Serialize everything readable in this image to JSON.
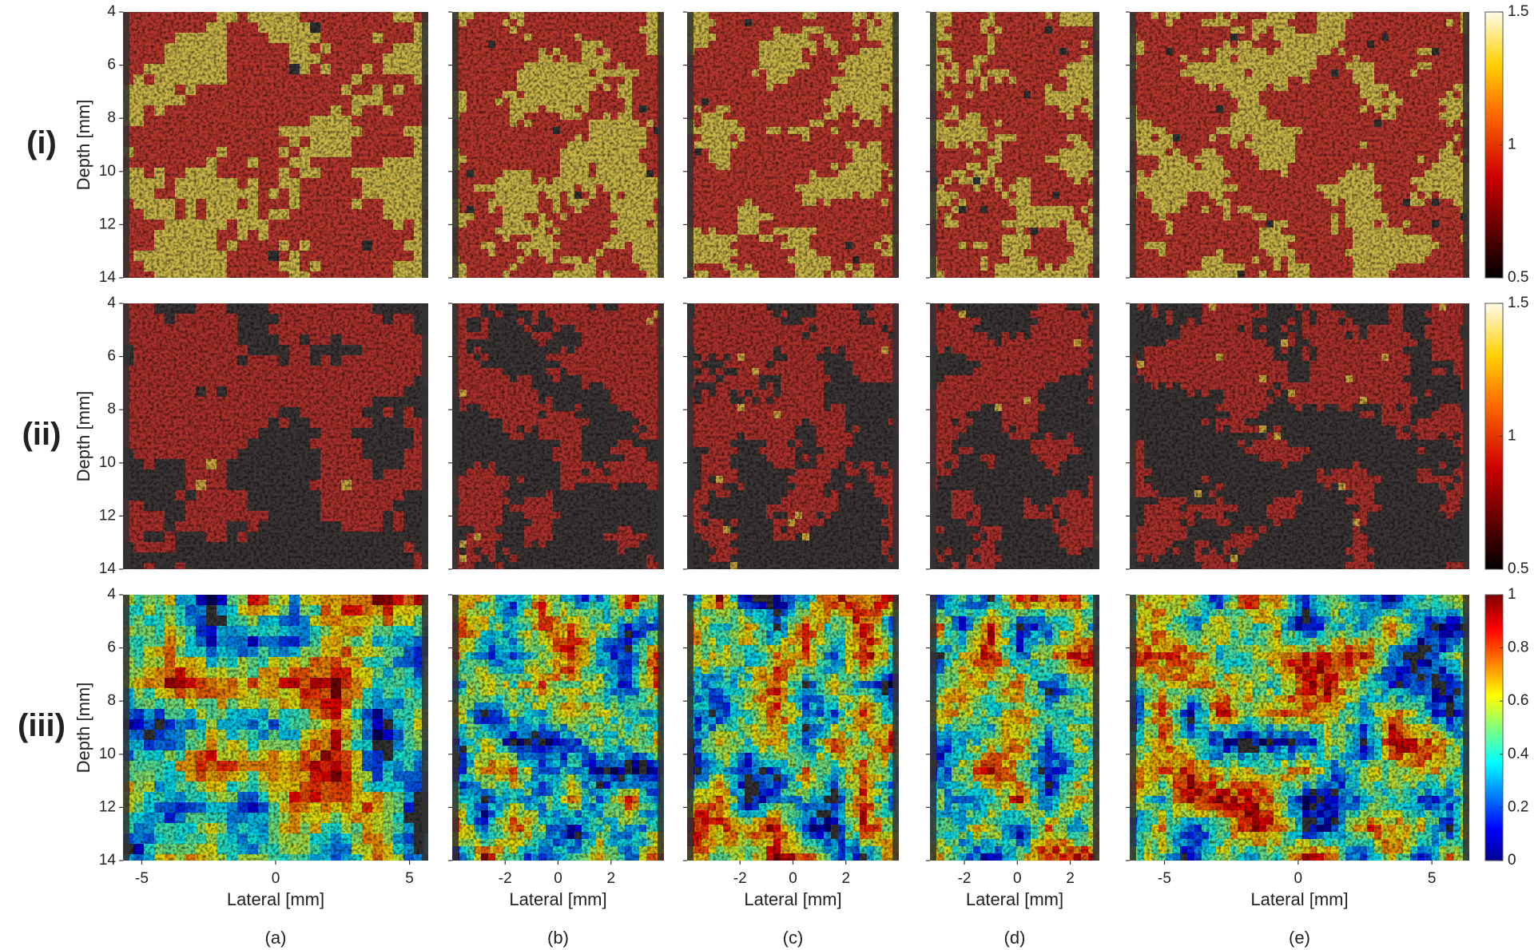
{
  "row_labels": [
    "(i)",
    "(ii)",
    "(iii)"
  ],
  "column_labels": [
    "(a)",
    "(b)",
    "(c)",
    "(d)",
    "(e)"
  ],
  "y_axis": {
    "label": "Depth [mm]",
    "ylim": [
      4,
      14
    ],
    "ticks": [
      4,
      6,
      8,
      10,
      12,
      14
    ]
  },
  "x_axis": {
    "label": "Lateral [mm]"
  },
  "columns": [
    {
      "xlim": [
        -5.7,
        5.7
      ],
      "xticks": [
        -5,
        0,
        5
      ]
    },
    {
      "xlim": [
        -4,
        4
      ],
      "xticks": [
        -2,
        0,
        2
      ]
    },
    {
      "xlim": [
        -4,
        4
      ],
      "xticks": [
        -2,
        0,
        2
      ]
    },
    {
      "xlim": [
        -3.3,
        3.1
      ],
      "xticks": [
        -2,
        0,
        2
      ]
    },
    {
      "xlim": [
        -6.3,
        6.4
      ],
      "xticks": [
        -5,
        0,
        5
      ]
    }
  ],
  "colorbars": [
    {
      "colormap": "hot",
      "lim": [
        0.5,
        1.5
      ],
      "ticks": [
        0.5,
        1,
        1.5
      ]
    },
    {
      "colormap": "hot",
      "lim": [
        0.5,
        1.5
      ],
      "ticks": [
        0.5,
        1,
        1.5
      ]
    },
    {
      "colormap": "jet",
      "lim": [
        0,
        1
      ],
      "ticks": [
        0,
        0.2,
        0.4,
        0.6,
        0.8,
        1
      ]
    }
  ]
}
